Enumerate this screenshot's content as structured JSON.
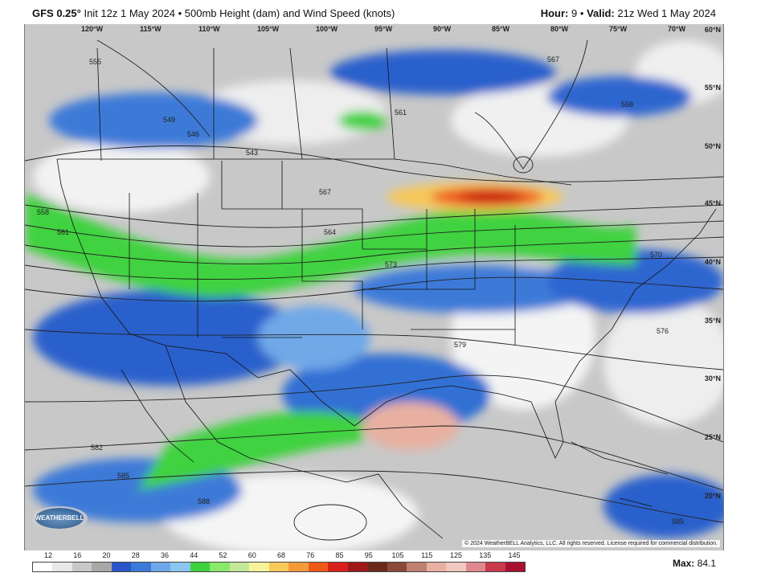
{
  "header": {
    "model": "GFS 0.25°",
    "init": "Init 12z 1 May 2024",
    "bullet": "•",
    "product": "500mb Height (dam) and Wind Speed (knots)",
    "hour_label": "Hour:",
    "hour_value": "9",
    "valid_label": "Valid:",
    "valid_value": "21z Wed 1 May 2024"
  },
  "map": {
    "longitude_labels": [
      "120°W",
      "115°W",
      "110°W",
      "105°W",
      "100°W",
      "95°W",
      "90°W",
      "85°W",
      "80°W",
      "75°W",
      "70°W"
    ],
    "latitude_labels": [
      "60°N",
      "55°N",
      "50°N",
      "45°N",
      "40°N",
      "35°N",
      "30°N",
      "25°N",
      "20°N"
    ],
    "contour_labels": [
      "555",
      "549",
      "546",
      "543",
      "567",
      "561",
      "558",
      "558",
      "561",
      "564",
      "567",
      "570",
      "573",
      "576",
      "579",
      "582",
      "585",
      "588",
      "555",
      "561",
      "585"
    ],
    "copyright": "© 2024 WeatherBELL Analytics, LLC. All rights reserved. License required for commercial distribution.",
    "logo_text": "WEATHERBELL"
  },
  "legend": {
    "labels": [
      "12",
      "16",
      "20",
      "28",
      "36",
      "44",
      "52",
      "60",
      "68",
      "76",
      "85",
      "95",
      "105",
      "115",
      "125",
      "135",
      "145"
    ],
    "colors": [
      "#ffffff",
      "#e8e8e8",
      "#c8c8c8",
      "#a8a8a8",
      "#2a55c8",
      "#3c7ad8",
      "#6fa8e8",
      "#8ac6f0",
      "#3fd23f",
      "#8ae86a",
      "#c4e89a",
      "#f7f29a",
      "#f7c85a",
      "#f49a3a",
      "#ee5a1a",
      "#d8201a",
      "#a01818",
      "#6a2a1a",
      "#8a4a3a",
      "#c08070",
      "#e8b0a0",
      "#f0c8c0",
      "#e08890",
      "#c83a4a",
      "#a81030"
    ],
    "max_label": "Max:",
    "max_value": "84.1"
  }
}
